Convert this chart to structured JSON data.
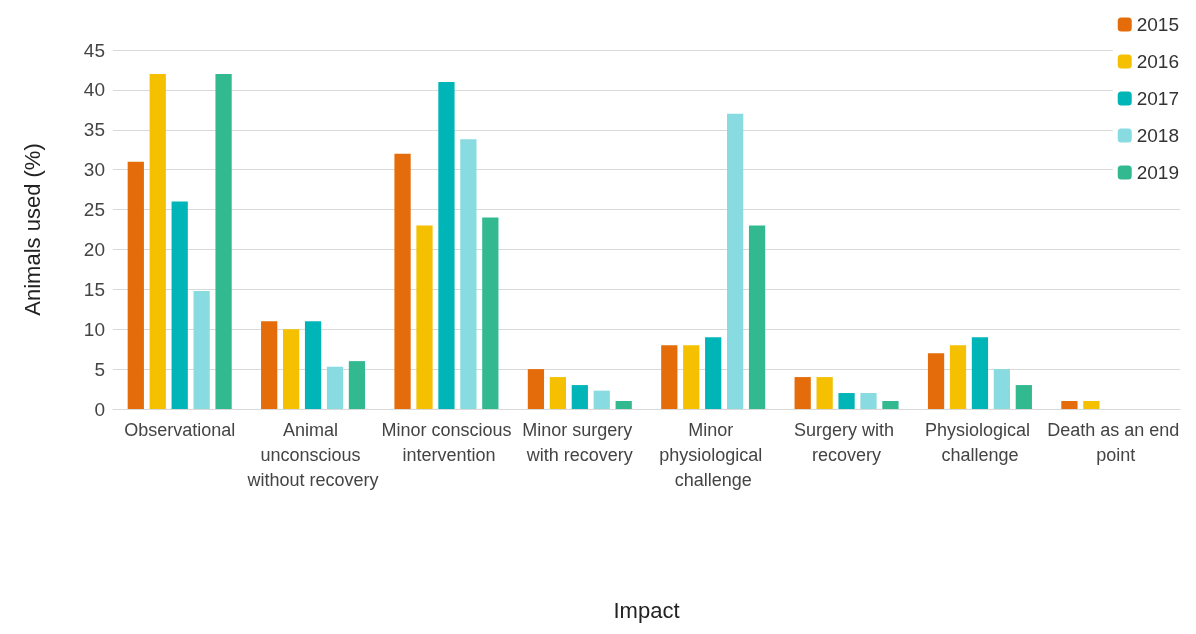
{
  "chart_data": {
    "type": "bar",
    "xlabel": "Impact",
    "ylabel": "Animals used (%)",
    "categories": [
      "Observational",
      "Animal unconscious without recovery",
      "Minor conscious intervention",
      "Minor surgery with recovery",
      "Minor physiological challenge",
      "Surgery with recovery",
      "Physiological challenge",
      "Death as an end point"
    ],
    "series": [
      {
        "name": "2015",
        "color": "#e46c0a",
        "values": [
          31,
          11,
          32,
          5,
          8,
          4,
          7,
          1
        ]
      },
      {
        "name": "2016",
        "color": "#f5c000",
        "values": [
          42,
          10,
          23,
          4,
          8,
          4,
          8,
          1
        ]
      },
      {
        "name": "2017",
        "color": "#00b5b8",
        "values": [
          26,
          11,
          41,
          3,
          9,
          2,
          9,
          0
        ]
      },
      {
        "name": "2018",
        "color": "#88dbe0",
        "values": [
          14.8,
          5.3,
          33.8,
          2.3,
          37,
          2,
          5,
          0
        ]
      },
      {
        "name": "2019",
        "color": "#33b98f",
        "values": [
          42,
          6,
          24,
          1,
          23,
          1,
          3,
          0
        ]
      }
    ],
    "ylim": [
      0,
      45
    ],
    "yticks": [
      0,
      5,
      10,
      15,
      20,
      25,
      30,
      35,
      40,
      45
    ],
    "grid": "y",
    "legend": "top right"
  }
}
